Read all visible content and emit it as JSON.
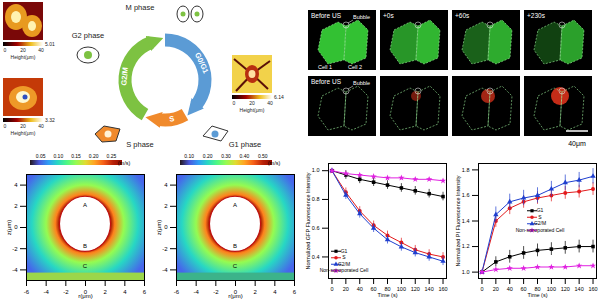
{
  "cell_cycle": {
    "phases": [
      "G2 phase",
      "M phase",
      "S phase",
      "G1 phase"
    ],
    "arcs": [
      {
        "label": "G2/M",
        "color": "#7dc242"
      },
      {
        "label": "G0/G1",
        "color": "#5b9bd5"
      },
      {
        "label": "S",
        "color": "#f08a2c"
      }
    ],
    "afm": [
      {
        "ticks": [
          0,
          20,
          40
        ],
        "colorbar_label": "Height(μm)",
        "max": 5.01
      },
      {
        "ticks": [
          0,
          20,
          40
        ],
        "colorbar_label": "Height(μm)",
        "max": 3.32
      },
      {
        "ticks": [
          0,
          20,
          40
        ],
        "colorbar_label": "Height(μm)",
        "max": 6.14
      }
    ]
  },
  "simulations": [
    {
      "colorbar": {
        "lim": [
          0.02,
          0.28
        ],
        "ticks": [
          0.05,
          {
            "value": 0.1,
            "label": "0.10"
          },
          0.15,
          {
            "value": 0.2,
            "label": "0.20"
          },
          0.25
        ],
        "unit": "(m/s)"
      },
      "xlabel": "r(μm)",
      "ylabel": "z(μm)",
      "xlim": [
        -6,
        6
      ],
      "ylim": [
        -5,
        5
      ],
      "xticks": [
        -6,
        -4,
        -2,
        0,
        2,
        4,
        6
      ],
      "yticks": [
        -4,
        -2,
        0,
        2,
        4
      ],
      "points": [
        "A",
        "B",
        "C"
      ]
    },
    {
      "colorbar": {
        "lim": [
          0.05,
          0.55
        ],
        "ticks": [
          {
            "value": 0.1,
            "label": "0.10"
          },
          {
            "value": 0.2,
            "label": "0.20"
          },
          {
            "value": 0.3,
            "label": "0.30"
          },
          {
            "value": 0.4,
            "label": "0.40"
          },
          {
            "value": 0.5,
            "label": "0.50"
          }
        ],
        "unit": "(m/s)"
      },
      "xlabel": "r(μm)",
      "ylabel": "z(μm)",
      "xlim": [
        -6,
        6
      ],
      "ylim": [
        -5,
        5
      ],
      "xticks": [
        -6,
        -4,
        -2,
        0,
        2,
        4,
        6
      ],
      "yticks": [
        -4,
        -2,
        0,
        2,
        4
      ],
      "points": [
        "A",
        "B",
        "C"
      ]
    }
  ],
  "microscopy": {
    "rows": [
      {
        "labels": [
          "Before US",
          "+0s",
          "+60s",
          "+230s"
        ],
        "annotations": [
          "Bubble",
          "Cell 1",
          "Cell 2"
        ],
        "color": "#39d639"
      },
      {
        "labels": [
          "Before US"
        ],
        "annotations": [
          "Bubble"
        ],
        "color": "#e8341c"
      }
    ],
    "scale_bar": "40μm"
  },
  "chart_data": [
    {
      "type": "line",
      "xlabel": "Time (s)",
      "ylabel": "Normalized GFP Fluorescence Intensity",
      "x": [
        0,
        20,
        40,
        60,
        80,
        100,
        120,
        140,
        160
      ],
      "xlim": [
        -5,
        165
      ],
      "xticks": [
        0,
        20,
        40,
        60,
        80,
        100,
        120,
        140,
        160
      ],
      "ylim": [
        0.25,
        1.05
      ],
      "yticks": [
        0.4,
        0.6,
        0.8,
        {
          "value": 1,
          "label": "1.0"
        }
      ],
      "legend": "bottom-left",
      "series": [
        {
          "name": "G1",
          "color": "#000000",
          "marker": "square",
          "values": [
            1,
            0.97,
            0.94,
            0.92,
            0.9,
            0.88,
            0.86,
            0.84,
            0.82
          ],
          "errors": [
            0,
            0.03,
            0.03,
            0.03,
            0.03,
            0.03,
            0.03,
            0.03,
            0.03
          ]
        },
        {
          "name": "S",
          "color": "#e31a1c",
          "marker": "circle",
          "values": [
            1,
            0.85,
            0.72,
            0.62,
            0.55,
            0.5,
            0.45,
            0.42,
            0.4
          ],
          "errors": [
            0,
            0.03,
            0.03,
            0.03,
            0.03,
            0.03,
            0.03,
            0.03,
            0.03
          ]
        },
        {
          "name": "G2/M",
          "color": "#1f3fcf",
          "marker": "triangle",
          "values": [
            1,
            0.83,
            0.7,
            0.6,
            0.52,
            0.47,
            0.43,
            0.4,
            0.37
          ],
          "errors": [
            0,
            0.03,
            0.03,
            0.03,
            0.03,
            0.03,
            0.03,
            0.03,
            0.03
          ]
        },
        {
          "name": "Non-sonoporated Cell",
          "color": "#e020e0",
          "marker": "star",
          "values": [
            1,
            0.98,
            0.97,
            0.96,
            0.95,
            0.95,
            0.94,
            0.94,
            0.93
          ],
          "errors": [
            0,
            0.01,
            0.01,
            0.01,
            0.01,
            0.01,
            0.01,
            0.01,
            0.01
          ]
        }
      ]
    },
    {
      "type": "line",
      "xlabel": "Time (s)",
      "ylabel": "Normalized PI Fluorescence Intensity",
      "x": [
        0,
        20,
        40,
        60,
        80,
        100,
        120,
        140,
        160
      ],
      "xlim": [
        -5,
        165
      ],
      "xticks": [
        0,
        20,
        40,
        60,
        80,
        100,
        120,
        140,
        160
      ],
      "ylim": [
        0.95,
        1.85
      ],
      "yticks": [
        {
          "value": 1,
          "label": "1.0"
        },
        1.2,
        1.4,
        1.6,
        1.8
      ],
      "legend": "right",
      "series": [
        {
          "name": "G1",
          "color": "#000000",
          "marker": "square",
          "values": [
            1,
            1.08,
            1.12,
            1.15,
            1.17,
            1.18,
            1.19,
            1.2,
            1.2
          ],
          "errors": [
            0,
            0.04,
            0.05,
            0.05,
            0.05,
            0.05,
            0.05,
            0.05,
            0.05
          ]
        },
        {
          "name": "S",
          "color": "#e31a1c",
          "marker": "circle",
          "values": [
            1,
            1.4,
            1.5,
            1.55,
            1.58,
            1.6,
            1.62,
            1.63,
            1.65
          ],
          "errors": [
            0,
            0.05,
            0.05,
            0.05,
            0.05,
            0.05,
            0.05,
            0.05,
            0.05
          ]
        },
        {
          "name": "G2/M",
          "color": "#1f3fcf",
          "marker": "triangle",
          "values": [
            1,
            1.45,
            1.55,
            1.58,
            1.6,
            1.65,
            1.7,
            1.72,
            1.75
          ],
          "errors": [
            0,
            0.06,
            0.06,
            0.06,
            0.06,
            0.06,
            0.06,
            0.06,
            0.06
          ]
        },
        {
          "name": "Non-sonoporated Cell",
          "color": "#e020e0",
          "marker": "star",
          "values": [
            1,
            1.02,
            1.03,
            1.03,
            1.04,
            1.04,
            1.04,
            1.05,
            1.05
          ],
          "errors": [
            0,
            0.01,
            0.01,
            0.01,
            0.01,
            0.01,
            0.01,
            0.01,
            0.01
          ]
        }
      ]
    }
  ]
}
